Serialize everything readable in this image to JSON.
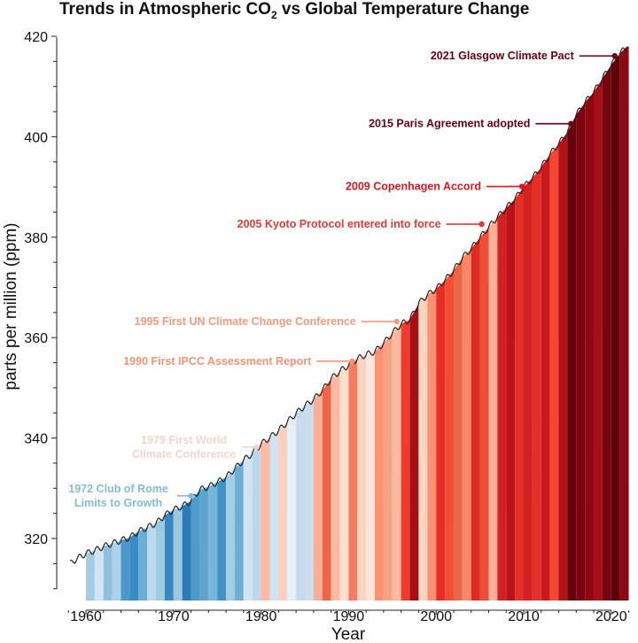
{
  "chart_data": {
    "type": "area",
    "title": "Trends in Atmospheric CO",
    "title_subscript": "2",
    "title_suffix": " vs Global Temperature Change",
    "xlabel": "Year",
    "ylabel": "parts per million (ppm)",
    "xlim": [
      1957.5,
      2022.5
    ],
    "ylim": [
      308,
      423
    ],
    "x_ticks": [
      1960,
      1970,
      1980,
      1990,
      2000,
      2010,
      2020
    ],
    "y_ticks": [
      320,
      340,
      360,
      380,
      400,
      420
    ],
    "grid": false,
    "series": [
      {
        "x": [
          1958.2,
          1959,
          1960,
          1961,
          1962,
          1963,
          1964,
          1965,
          1966,
          1967,
          1968,
          1969,
          1970,
          1971,
          1972,
          1973,
          1974,
          1975,
          1976,
          1977,
          1978,
          1979,
          1980,
          1981,
          1982,
          1983,
          1984,
          1985,
          1986,
          1987,
          1988,
          1989,
          1990,
          1991,
          1992,
          1993,
          1994,
          1995,
          1996,
          1997,
          1998,
          1999,
          2000,
          2001,
          2002,
          2003,
          2004,
          2005,
          2006,
          2007,
          2008,
          2009,
          2010,
          2011,
          2012,
          2013,
          2014,
          2015,
          2016,
          2017,
          2018,
          2019,
          2020,
          2021,
          2021.8
        ],
        "y": [
          315.0,
          316.0,
          317.0,
          317.6,
          318.4,
          319.0,
          319.6,
          320.2,
          321.4,
          322.2,
          323.0,
          324.6,
          325.7,
          326.4,
          327.5,
          329.7,
          330.3,
          331.2,
          332.2,
          333.9,
          335.6,
          336.9,
          338.8,
          340.1,
          341.5,
          343.2,
          344.9,
          346.4,
          347.7,
          349.5,
          351.8,
          353.3,
          354.5,
          355.8,
          356.6,
          357.2,
          358.9,
          360.9,
          362.7,
          363.6,
          366.8,
          368.5,
          369.7,
          371.4,
          373.4,
          375.9,
          377.7,
          379.9,
          382.0,
          384.0,
          385.8,
          387.6,
          390.0,
          391.8,
          393.9,
          396.5,
          398.6,
          400.9,
          404.4,
          406.8,
          408.9,
          411.6,
          414.3,
          416.6,
          418.0
        ]
      }
    ],
    "stripes": {
      "start_year": 1960,
      "year_anomaly_colors": [
        "#a3cde3",
        "#d2e3f3",
        "#8fc1de",
        "#add1e7",
        "#4b97c9",
        "#3a8ac3",
        "#6aaed6",
        "#bcd8ec",
        "#9dcbe1",
        "#3787c0",
        "#9ac8e0",
        "#2d7ab9",
        "#4d9acb",
        "#5da5d1",
        "#79b5d9",
        "#4291c7",
        "#a3cde3",
        "#6caed6",
        "#d2e3f3",
        "#bdd7eb",
        "#fcbba1",
        "#cfe1f2",
        "#fdd0bc",
        "#e6eff9",
        "#c7dbef",
        "#c9ddf0",
        "#f6b09a",
        "#ef6548",
        "#fcbba1",
        "#fee0d2",
        "#f77b63",
        "#fdd4c2",
        "#fee6dc",
        "#fc9272",
        "#f5a286",
        "#fcbba1",
        "#ef3b2c",
        "#a50f15",
        "#fdd4c2",
        "#fc9272",
        "#e32f27",
        "#f44d37",
        "#ec6547",
        "#f8876a",
        "#dc2a25",
        "#f04d38",
        "#fcb09a",
        "#d42020",
        "#b71319",
        "#e32f27",
        "#d42020",
        "#e32f27",
        "#cb181d",
        "#f24734",
        "#b11218",
        "#67000d",
        "#7a0510",
        "#8d0812",
        "#a50f15",
        "#730410",
        "#5e0009",
        "#8d0812"
      ]
    },
    "annotations": [
      {
        "lines": [
          "1972 Club of Rome",
          "Limits to Growth"
        ],
        "x": 1972,
        "y": 328.5,
        "color": "#87bcd3"
      },
      {
        "lines": [
          "1979 First World",
          "Climate Conference"
        ],
        "x": 1979.5,
        "y": 338.2,
        "color": "#f3d6cb"
      },
      {
        "lines": [
          "1990 First IPCC Assessment Report"
        ],
        "x": 1990.4,
        "y": 355.3,
        "color": "#f0957a"
      },
      {
        "lines": [
          "1995 First UN Climate Change Conference"
        ],
        "x": 1995.5,
        "y": 363.2,
        "color": "#f59a80"
      },
      {
        "lines": [
          "2005 Kyoto Protocol entered into force"
        ],
        "x": 2005.2,
        "y": 382.6,
        "color": "#e43a37"
      },
      {
        "lines": [
          "2009 Copenhagen Accord"
        ],
        "x": 2009.8,
        "y": 390.1,
        "color": "#d51a20"
      },
      {
        "lines": [
          "2015 Paris Agreement adopted"
        ],
        "x": 2015.4,
        "y": 402.6,
        "color": "#6b0010"
      },
      {
        "lines": [
          "2021 Glasgow Climate Pact"
        ],
        "x": 2020.4,
        "y": 416.1,
        "color": "#6b0010"
      }
    ]
  }
}
